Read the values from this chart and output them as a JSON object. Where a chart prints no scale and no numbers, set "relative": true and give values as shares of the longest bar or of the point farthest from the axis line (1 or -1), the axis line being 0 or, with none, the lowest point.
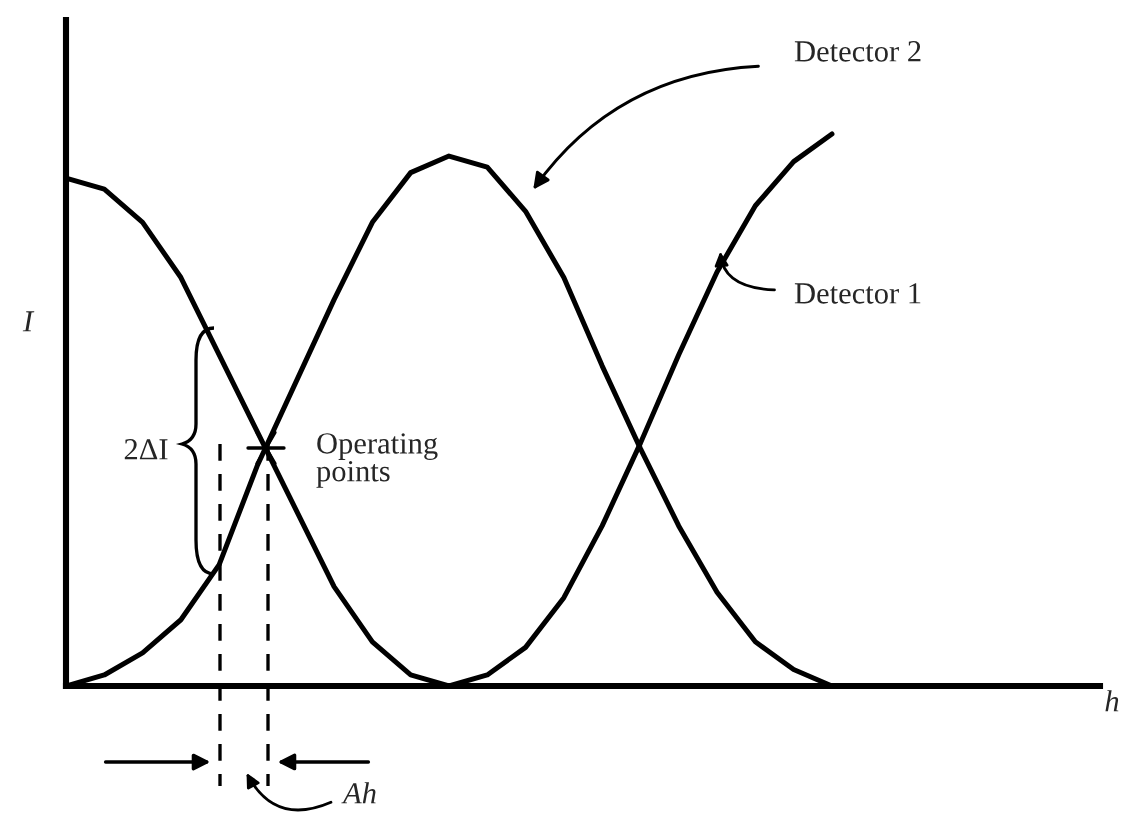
{
  "chart_data": {
    "type": "line",
    "relative": true,
    "xlabel": "h",
    "ylabel": "I",
    "categories": [
      null,
      null,
      null,
      null,
      null,
      null,
      null,
      null,
      null,
      null,
      null,
      null,
      null,
      null,
      null,
      null,
      null,
      null,
      null,
      null,
      null,
      null,
      null,
      null,
      null,
      null,
      null,
      null
    ],
    "series": [
      {
        "name": "Detector 1",
        "color": "#000000",
        "values": [
          0.92,
          0.9,
          0.84,
          0.74,
          0.6,
          0.46,
          0.32,
          0.18,
          0.08,
          0.02,
          0,
          0.02,
          0.07,
          0.16,
          0.29,
          0.44,
          0.6,
          0.75,
          0.87,
          0.95,
          1.0,
          null,
          null,
          null,
          null,
          null,
          null,
          null
        ]
      },
      {
        "name": "Detector 2",
        "color": "#000000",
        "values": [
          0,
          0.02,
          0.06,
          0.12,
          0.22,
          0.4,
          0.55,
          0.7,
          0.84,
          0.93,
          0.96,
          0.94,
          0.86,
          0.74,
          0.58,
          0.43,
          0.29,
          0.17,
          0.08,
          0.03,
          0,
          null,
          null,
          null,
          null,
          null,
          null,
          null
        ]
      }
    ],
    "annotations": [
      "Operating\npoints",
      "2ΔI",
      "Ah"
    ],
    "legend": "right",
    "grid": false,
    "line_style": "solid",
    "marker": "none"
  }
}
